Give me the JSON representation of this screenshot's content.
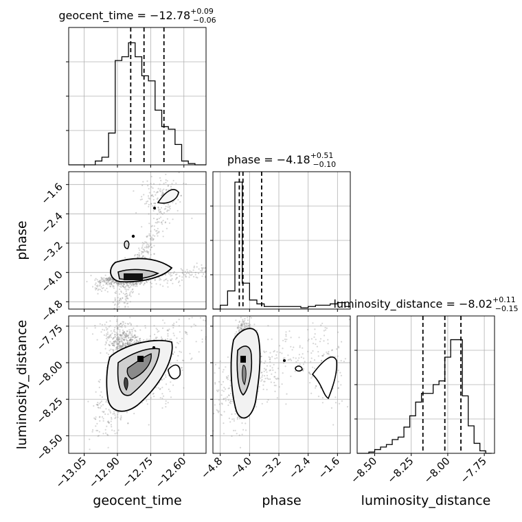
{
  "chart_data": {
    "type": "scatter",
    "kind": "corner-plot",
    "parameters": [
      {
        "name": "geocent_time",
        "range": [
          -13.12,
          -12.5
        ],
        "ticks": [
          -13.05,
          -12.9,
          -12.75,
          -12.6
        ],
        "tick_labels": [
          "−13.05",
          "−12.90",
          "−12.75",
          "−12.60"
        ],
        "title_main": "geocent_time = −12.78",
        "title_sup": "+0.09",
        "title_sub": "−0.06",
        "quantiles": [
          -12.84,
          -12.78,
          -12.69
        ],
        "hist_bins": [
          -13.12,
          -13.09,
          -13.06,
          -13.03,
          -13.0,
          -12.97,
          -12.94,
          -12.91,
          -12.88,
          -12.85,
          -12.82,
          -12.79,
          -12.76,
          -12.73,
          -12.7,
          -12.67,
          -12.64,
          -12.61,
          -12.58,
          -12.55,
          -12.52,
          -12.5
        ],
        "hist_values": [
          0.0,
          0.0,
          0.0,
          0.0,
          0.03,
          0.06,
          0.25,
          0.82,
          0.85,
          0.96,
          0.85,
          0.7,
          0.66,
          0.43,
          0.3,
          0.28,
          0.16,
          0.03,
          0.01,
          0.0,
          0.0
        ],
        "hist_ymax": 1.08
      },
      {
        "name": "phase",
        "range": [
          -5.0,
          -1.25
        ],
        "ticks": [
          -4.8,
          -4.0,
          -3.2,
          -2.4,
          -1.6
        ],
        "tick_labels": [
          "−4.8",
          "−4.0",
          "−3.2",
          "−2.4",
          "−1.6"
        ],
        "title_main": "phase = −4.18",
        "title_sup": "+0.51",
        "title_sub": "−0.10",
        "quantiles": [
          -4.28,
          -4.18,
          -3.67
        ],
        "hist_bins": [
          -5.0,
          -4.8,
          -4.6,
          -4.4,
          -4.2,
          -4.0,
          -3.8,
          -3.6,
          -3.4,
          -3.2,
          -3.0,
          -2.8,
          -2.6,
          -2.4,
          -2.2,
          -2.0,
          -1.8,
          -1.6,
          -1.4,
          -1.25
        ],
        "hist_values": [
          0.0,
          0.03,
          0.14,
          0.98,
          0.2,
          0.07,
          0.04,
          0.02,
          0.02,
          0.02,
          0.02,
          0.02,
          0.01,
          0.02,
          0.03,
          0.03,
          0.04,
          0.05,
          0.02
        ],
        "hist_ymax": 1.06
      },
      {
        "name": "luminosity_distance",
        "range": [
          -8.62,
          -7.68
        ],
        "ticks": [
          -8.5,
          -8.25,
          -8.0,
          -7.75
        ],
        "tick_labels": [
          "−8.50",
          "−8.25",
          "−8.00",
          "−7.75"
        ],
        "title_main": "luminosity_distance = −8.02",
        "title_sup": "+0.11",
        "title_sub": "−0.15",
        "quantiles": [
          -8.17,
          -8.02,
          -7.91
        ],
        "hist_bins": [
          -8.62,
          -8.58,
          -8.54,
          -8.5,
          -8.46,
          -8.42,
          -8.38,
          -8.34,
          -8.3,
          -8.26,
          -8.22,
          -8.18,
          -8.14,
          -8.1,
          -8.06,
          -8.02,
          -7.98,
          -7.94,
          -7.9,
          -7.86,
          -7.82,
          -7.78,
          -7.74,
          -7.7
        ],
        "hist_values": [
          0.0,
          0.0,
          0.01,
          0.03,
          0.05,
          0.07,
          0.11,
          0.13,
          0.21,
          0.3,
          0.41,
          0.48,
          0.48,
          0.55,
          0.58,
          0.77,
          0.91,
          0.91,
          0.46,
          0.22,
          0.08,
          0.02,
          0.0
        ],
        "hist_ymax": 1.1
      }
    ],
    "grid": true,
    "quantile_lines": "dashed",
    "contour_levels": [
      "inner",
      "middle",
      "outer"
    ]
  }
}
